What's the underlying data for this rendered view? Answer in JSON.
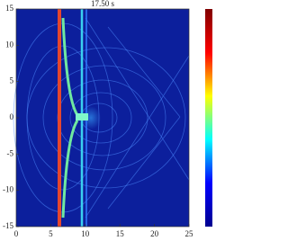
{
  "chart_data": {
    "type": "heatmap",
    "title": "17.50 s",
    "xlim": [
      0,
      25
    ],
    "xticks": [
      0,
      5,
      10,
      15,
      20,
      25
    ],
    "ylim": [
      -15,
      15
    ],
    "yticks": [
      -15,
      -10,
      -5,
      0,
      5,
      10,
      15
    ],
    "colormap": [
      "#00008f",
      "#0000ff",
      "#00ffff",
      "#ffff00",
      "#ff0000",
      "#800000"
    ]
  }
}
